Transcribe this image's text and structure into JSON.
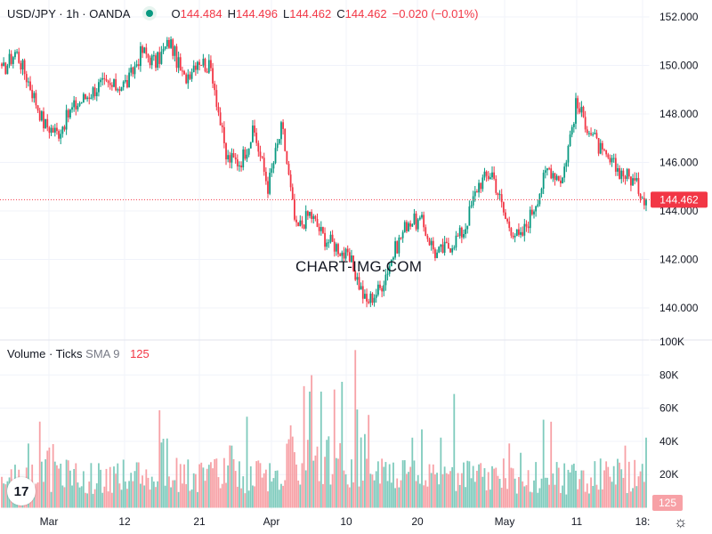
{
  "header": {
    "symbol": "USD/JPY · 1h · OANDA",
    "o_label": "O",
    "o_value": "144.484",
    "h_label": "H",
    "h_value": "144.496",
    "l_label": "L",
    "l_value": "144.462",
    "c_label": "C",
    "c_value": "144.462",
    "change": "−0.020 (−0.01%)"
  },
  "volume_legend": {
    "label": "Volume · Ticks",
    "sma": "SMA 9",
    "value": "125"
  },
  "watermark": "CHART-IMG.COM",
  "logo_text": "17",
  "colors": {
    "up": "#089981",
    "down": "#f23645",
    "vol_up": "#7fcbbd",
    "vol_down": "#f7a1a6",
    "grid": "#f0f3fa",
    "text": "#131722"
  },
  "chart_data": [
    {
      "type": "line",
      "title": "USD/JPY · 1h · OANDA",
      "x_ticks": [
        "Mar",
        "12",
        "21",
        "Apr",
        "10",
        "20",
        "May",
        "11",
        "18:"
      ],
      "y_ticks": [
        "140.000",
        "142.000",
        "144.000",
        "146.000",
        "148.000",
        "150.000",
        "152.000"
      ],
      "ylim": [
        138.7,
        152.3
      ],
      "last_price_label": "144.462",
      "series": [
        {
          "x": [
            "Feb 28",
            "Mar 3",
            "Mar 5",
            "Mar 7",
            "Mar 10",
            "Mar 12",
            "Mar 14",
            "Mar 17",
            "Mar 19",
            "Mar 21",
            "Mar 24",
            "Mar 26",
            "Mar 28",
            "Mar 31",
            "Apr 1",
            "Apr 2",
            "Apr 3",
            "Apr 4",
            "Apr 7",
            "Apr 8",
            "Apr 9",
            "Apr 10",
            "Apr 11",
            "Apr 14",
            "Apr 16",
            "Apr 18",
            "Apr 21",
            "Apr 22",
            "Apr 23",
            "Apr 24",
            "Apr 25",
            "Apr 28",
            "Apr 29",
            "Apr 30",
            "May 1",
            "May 2",
            "May 5",
            "May 6",
            "May 7",
            "May 8",
            "May 9",
            "May 12",
            "May 13",
            "May 14",
            "May 15",
            "May 16",
            "May 19"
          ],
          "values": [
            149.7,
            150.6,
            149.2,
            147.6,
            147.2,
            148.2,
            148.7,
            149.2,
            149.1,
            149.3,
            150.6,
            150.1,
            151.0,
            149.4,
            150.3,
            149.8,
            146.2,
            146.0,
            147.3,
            145.0,
            147.5,
            143.2,
            143.9,
            142.9,
            142.5,
            141.8,
            140.2,
            140.8,
            142.3,
            143.6,
            143.5,
            142.2,
            142.6,
            143.2,
            145.1,
            145.6,
            143.6,
            142.8,
            144.2,
            145.8,
            145.3,
            148.4,
            147.3,
            146.2,
            145.7,
            145.3,
            144.462
          ]
        }
      ]
    },
    {
      "type": "bar",
      "title": "Volume · Ticks",
      "y_ticks": [
        "20K",
        "40K",
        "60K",
        "80K",
        "100K"
      ],
      "ylim": [
        0,
        100000
      ],
      "last_value_label": "125"
    }
  ]
}
